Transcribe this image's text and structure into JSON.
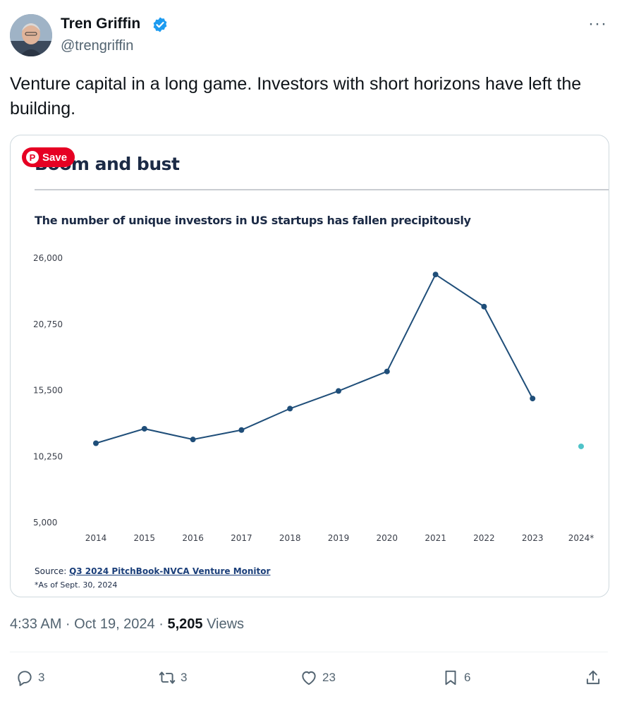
{
  "author": {
    "display_name": "Tren Griffin",
    "handle": "@trengriffin",
    "verified": true
  },
  "more_icon": "···",
  "tweet_text": "Venture capital in a long game. Investors with short horizons have left the building.",
  "card": {
    "save_label": "Save",
    "pin_glyph": "P",
    "source_prefix": "Source: ",
    "source_link": "Q3 2024 PitchBook-NVCA Venture Monitor",
    "footnote": "*As of Sept. 30, 2024"
  },
  "chart_data": {
    "type": "line",
    "title": "Boom and bust",
    "subtitle": "The number of unique investors in US startups has fallen precipitously",
    "xlabel": "",
    "ylabel": "",
    "categories": [
      "2014",
      "2015",
      "2016",
      "2017",
      "2018",
      "2019",
      "2020",
      "2021",
      "2022",
      "2023",
      "2024*"
    ],
    "ylim": [
      5000,
      26000
    ],
    "yticks": [
      "5,000",
      "10,250",
      "15,500",
      "20,750",
      "26,000"
    ],
    "ytick_values": [
      5000,
      10250,
      15500,
      20750,
      26000
    ],
    "series": [
      {
        "values": [
          11300,
          12450,
          11600,
          12350,
          14050,
          15450,
          17000,
          24700,
          22150,
          14850,
          11050
        ],
        "colors": [
          "#1f4e79",
          "#1f4e79",
          "#1f4e79",
          "#1f4e79",
          "#1f4e79",
          "#1f4e79",
          "#1f4e79",
          "#1f4e79",
          "#1f4e79",
          "#1f4e79",
          "#4fc3c9"
        ],
        "connected_points": 10
      }
    ],
    "grid": false,
    "legend": "none"
  },
  "timestamp": "4:33 AM · Oct 19, 2024 · ",
  "views_count": "5,205",
  "views_label": " Views",
  "actions": {
    "replies": "3",
    "retweets": "3",
    "likes": "23",
    "bookmarks": "6"
  },
  "colors": {
    "accent_verified": "#1d9bf0",
    "pinterest_red": "#e60023",
    "series_color": "#1f4e79",
    "partial_year_color": "#4fc3c9"
  }
}
